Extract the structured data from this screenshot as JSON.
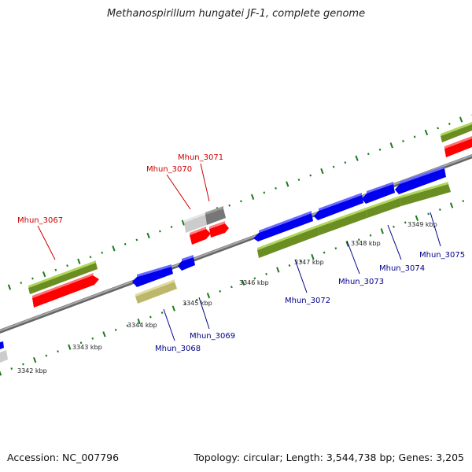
{
  "title": "Methanospirillum hungatei JF-1, complete genome",
  "footer": {
    "accession": "Accession: NC_007796",
    "summary": "Topology: circular; Length: 3,544,738 bp; Genes: 3,205"
  },
  "colors": {
    "forward_gene": "#ff0000",
    "reverse_gene": "#0000ee",
    "gene_block": "#6b8e23",
    "pseudo_block": "#bdb76b",
    "other_gene": "#aaaaaa",
    "backbone": "#888888",
    "ticks": "#1a7a1a",
    "forward_label": "#cc0000",
    "reverse_label": "#00008b"
  },
  "scale": {
    "unit": "kbp",
    "tick_labels": [
      "3342 kbp",
      "3343 kbp",
      "3344 kbp",
      "3345 kbp",
      "3346 kbp",
      "3347 kbp",
      "3348 kbp",
      "3349 kbp"
    ]
  },
  "gene_labels": [
    {
      "name": "Mhun_3067",
      "strand": "forward"
    },
    {
      "name": "Mhun_3070",
      "strand": "forward"
    },
    {
      "name": "Mhun_3071",
      "strand": "forward"
    },
    {
      "name": "Mhun_3068",
      "strand": "reverse"
    },
    {
      "name": "Mhun_3069",
      "strand": "reverse"
    },
    {
      "name": "Mhun_3072",
      "strand": "reverse"
    },
    {
      "name": "Mhun_3073",
      "strand": "reverse"
    },
    {
      "name": "Mhun_3074",
      "strand": "reverse"
    },
    {
      "name": "Mhun_3075",
      "strand": "reverse"
    }
  ]
}
